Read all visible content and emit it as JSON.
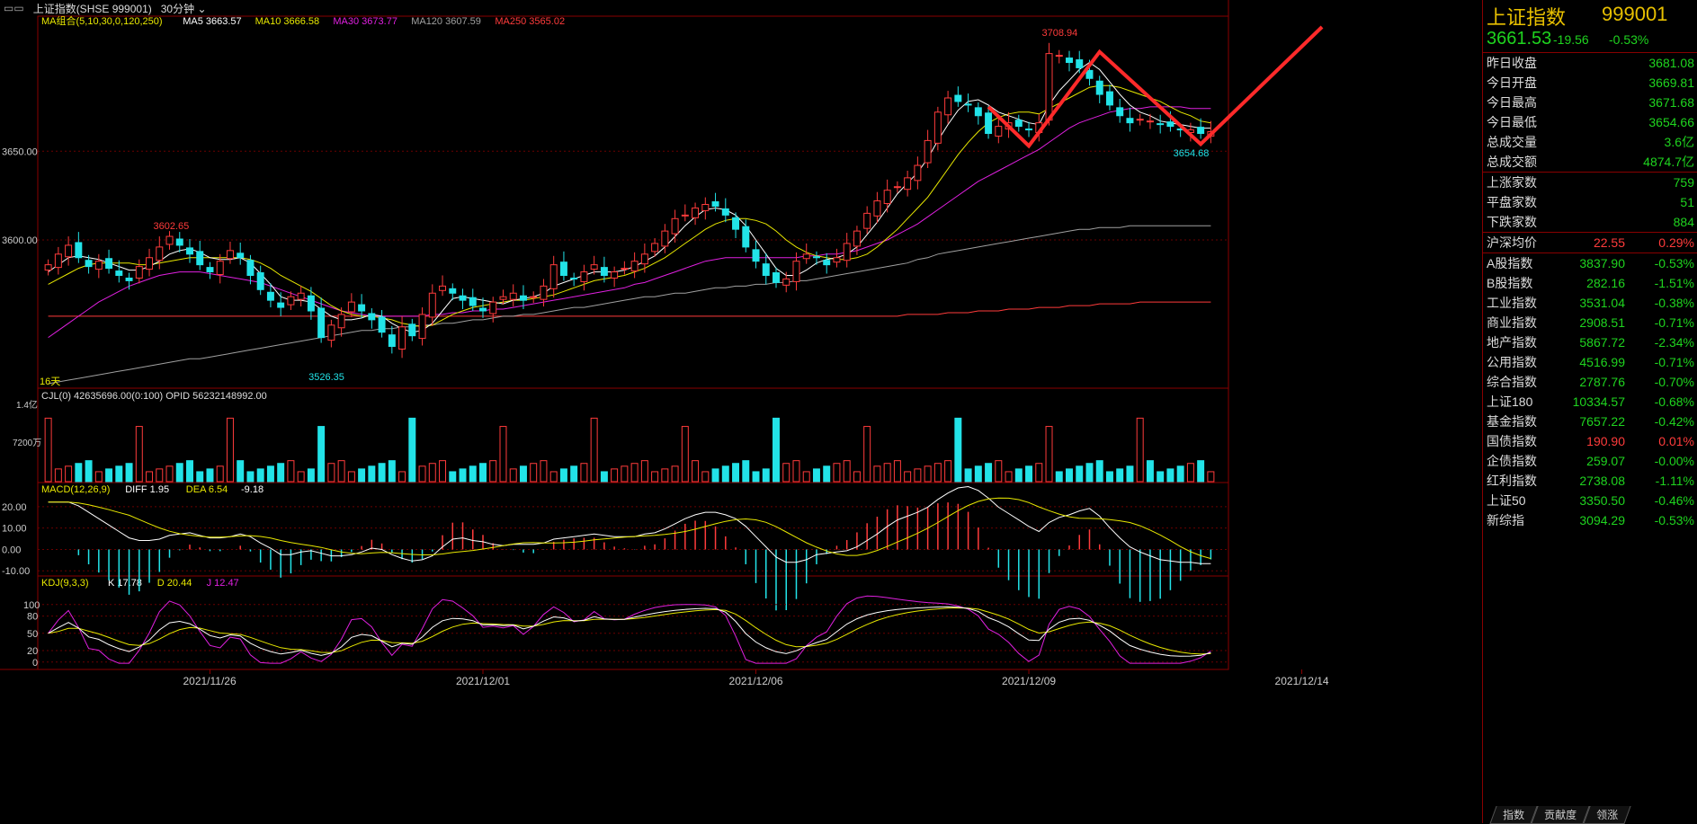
{
  "topbar": {
    "title": "上证指数(SHSE 999001)",
    "period": "30分钟"
  },
  "main_legend": [
    {
      "text": "MA组合(5,10,30,0,120,250)",
      "color": "#e8e800"
    },
    {
      "text": "MA5 3663.57",
      "color": "#ffffff"
    },
    {
      "text": "MA10 3666.58",
      "color": "#e8e800"
    },
    {
      "text": "MA30 3673.77",
      "color": "#e020e0"
    },
    {
      "text": "MA120 3607.59",
      "color": "#a0a0a0"
    },
    {
      "text": "MA250 3565.02",
      "color": "#ff3b3b"
    }
  ],
  "volume_legend": "CJL(0)  42635696.00(0:100)  OPID 56232148992.00",
  "macd_legend": [
    {
      "text": "MACD(12,26,9)",
      "color": "#e8e800"
    },
    {
      "text": "DIFF 1.95",
      "color": "#ffffff"
    },
    {
      "text": "DEA 6.54",
      "color": "#e8e800"
    },
    {
      "text": "-9.18",
      "color": "#ffffff"
    }
  ],
  "kdj_legend": [
    {
      "text": "KDJ(9,3,3)",
      "color": "#e8e800"
    },
    {
      "text": "K 17.78",
      "color": "#ffffff"
    },
    {
      "text": "D 20.44",
      "color": "#e8e800"
    },
    {
      "text": "J 12.47",
      "color": "#e020e0"
    }
  ],
  "price_annotations": {
    "high": "3708.94",
    "low": "3526.35",
    "local_high": "3602.65",
    "last_low": "3654.68",
    "days": "16天"
  },
  "info_panel": {
    "name": "上证指数",
    "code": "999001",
    "price": "3661.53",
    "change": "-19.56",
    "pct": "-0.53%",
    "stats": [
      {
        "k": "昨日收盘",
        "v": "3681.08",
        "c": "w"
      },
      {
        "k": "今日开盘",
        "v": "3669.81",
        "c": "g"
      },
      {
        "k": "今日最高",
        "v": "3671.68",
        "c": "g"
      },
      {
        "k": "今日最低",
        "v": "3654.66",
        "c": "g"
      },
      {
        "k": "总成交量",
        "v": "3.6亿",
        "c": "g"
      },
      {
        "k": "总成交额",
        "v": "4874.7亿",
        "c": "g"
      }
    ],
    "breadth": [
      {
        "k": "上涨家数",
        "v": "759",
        "c": "w"
      },
      {
        "k": "平盘家数",
        "v": "51",
        "c": "w"
      },
      {
        "k": "下跌家数",
        "v": "884",
        "c": "w"
      }
    ],
    "avg": {
      "k": "沪深均价",
      "v": "22.55",
      "p": "0.29%"
    },
    "indices": [
      {
        "k": "A股指数",
        "v": "3837.90",
        "p": "-0.53%",
        "c": "g"
      },
      {
        "k": "B股指数",
        "v": "282.16",
        "p": "-1.51%",
        "c": "g"
      },
      {
        "k": "工业指数",
        "v": "3531.04",
        "p": "-0.38%",
        "c": "g"
      },
      {
        "k": "商业指数",
        "v": "2908.51",
        "p": "-0.71%",
        "c": "g"
      },
      {
        "k": "地产指数",
        "v": "5867.72",
        "p": "-2.34%",
        "c": "g"
      },
      {
        "k": "公用指数",
        "v": "4516.99",
        "p": "-0.71%",
        "c": "g"
      },
      {
        "k": "综合指数",
        "v": "2787.76",
        "p": "-0.70%",
        "c": "g"
      },
      {
        "k": "上证180",
        "v": "10334.57",
        "p": "-0.68%",
        "c": "g"
      },
      {
        "k": "基金指数",
        "v": "7657.22",
        "p": "-0.42%",
        "c": "g"
      },
      {
        "k": "国债指数",
        "v": "190.90",
        "p": "0.01%",
        "c": "r"
      },
      {
        "k": "企债指数",
        "v": "259.07",
        "p": "-0.00%",
        "c": "g"
      },
      {
        "k": "红利指数",
        "v": "2738.08",
        "p": "-1.11%",
        "c": "g"
      },
      {
        "k": "上证50",
        "v": "3350.50",
        "p": "-0.46%",
        "c": "g"
      },
      {
        "k": "新综指",
        "v": "3094.29",
        "p": "-0.53%",
        "c": "g"
      }
    ],
    "tabs": [
      "指数",
      "贡献度",
      "领涨"
    ]
  },
  "chart_data": {
    "type": "candlestick",
    "x_labels": [
      "2021/11/26",
      "2021/12/01",
      "2021/12/06",
      "2021/12/09",
      "2021/12/14"
    ],
    "x_label_index": [
      16,
      43,
      70,
      97,
      124
    ],
    "price_ticks": [
      3600.0,
      3650.0
    ],
    "ylim": [
      3520,
      3720
    ],
    "closes": [
      3586,
      3592,
      3597,
      3590,
      3585,
      3588,
      3584,
      3580,
      3577,
      3585,
      3590,
      3596,
      3602,
      3597,
      3592,
      3586,
      3582,
      3588,
      3594,
      3590,
      3580,
      3572,
      3566,
      3562,
      3568,
      3570,
      3560,
      3545,
      3552,
      3558,
      3565,
      3560,
      3555,
      3548,
      3540,
      3551,
      3546,
      3558,
      3570,
      3574,
      3570,
      3566,
      3563,
      3560,
      3565,
      3568,
      3570,
      3566,
      3568,
      3574,
      3586,
      3580,
      3578,
      3582,
      3586,
      3580,
      3582,
      3584,
      3588,
      3592,
      3598,
      3605,
      3612,
      3614,
      3618,
      3620,
      3619,
      3614,
      3606,
      3596,
      3588,
      3580,
      3576,
      3578,
      3588,
      3592,
      3590,
      3586,
      3590,
      3598,
      3605,
      3615,
      3622,
      3628,
      3630,
      3635,
      3642,
      3656,
      3672,
      3680,
      3678,
      3676,
      3670,
      3660,
      3664,
      3666,
      3664,
      3662,
      3666,
      3705,
      3704,
      3700,
      3697,
      3691,
      3682,
      3676,
      3670,
      3666,
      3668,
      3667,
      3665,
      3664,
      3662,
      3662,
      3660,
      3661
    ],
    "ma5": [
      3582,
      3586,
      3590,
      3591,
      3590,
      3589,
      3587,
      3585,
      3583,
      3583,
      3585,
      3588,
      3592,
      3594,
      3595,
      3593,
      3590,
      3589,
      3589,
      3590,
      3587,
      3581,
      3575,
      3568,
      3566,
      3566,
      3565,
      3561,
      3557,
      3555,
      3555,
      3556,
      3558,
      3557,
      3553,
      3550,
      3548,
      3549,
      3553,
      3560,
      3567,
      3568,
      3567,
      3566,
      3565,
      3564,
      3566,
      3567,
      3568,
      3570,
      3574,
      3576,
      3578,
      3580,
      3582,
      3582,
      3582,
      3583,
      3585,
      3588,
      3591,
      3596,
      3602,
      3608,
      3613,
      3617,
      3618,
      3617,
      3614,
      3608,
      3600,
      3592,
      3584,
      3580,
      3580,
      3583,
      3587,
      3589,
      3590,
      3592,
      3596,
      3603,
      3610,
      3618,
      3626,
      3632,
      3638,
      3646,
      3656,
      3665,
      3673,
      3678,
      3679,
      3676,
      3672,
      3670,
      3668,
      3666,
      3665,
      3676,
      3684,
      3690,
      3696,
      3700,
      3696,
      3689,
      3682,
      3676,
      3672,
      3670,
      3667,
      3666,
      3665,
      3664,
      3663,
      3663
    ],
    "ma10": [
      3575,
      3578,
      3581,
      3584,
      3586,
      3587,
      3587,
      3587,
      3587,
      3586,
      3586,
      3587,
      3588,
      3589,
      3590,
      3590,
      3590,
      3590,
      3590,
      3590,
      3589,
      3587,
      3584,
      3580,
      3577,
      3574,
      3571,
      3567,
      3563,
      3560,
      3558,
      3557,
      3557,
      3556,
      3555,
      3553,
      3552,
      3551,
      3552,
      3555,
      3558,
      3560,
      3562,
      3563,
      3564,
      3565,
      3566,
      3566,
      3567,
      3568,
      3569,
      3571,
      3573,
      3575,
      3577,
      3578,
      3579,
      3580,
      3582,
      3584,
      3587,
      3590,
      3594,
      3598,
      3602,
      3606,
      3609,
      3611,
      3612,
      3612,
      3611,
      3609,
      3605,
      3600,
      3596,
      3593,
      3591,
      3590,
      3589,
      3589,
      3590,
      3592,
      3596,
      3601,
      3606,
      3612,
      3618,
      3624,
      3632,
      3640,
      3648,
      3655,
      3661,
      3666,
      3669,
      3671,
      3672,
      3672,
      3671,
      3674,
      3677,
      3680,
      3683,
      3686,
      3687,
      3687,
      3686,
      3684,
      3682,
      3680,
      3678,
      3675,
      3672,
      3670,
      3667,
      3666
    ],
    "ma30": [
      3545,
      3549,
      3553,
      3557,
      3561,
      3565,
      3568,
      3571,
      3574,
      3576,
      3578,
      3580,
      3581,
      3582,
      3582,
      3582,
      3581,
      3580,
      3579,
      3578,
      3577,
      3576,
      3574,
      3572,
      3570,
      3568,
      3566,
      3564,
      3562,
      3560,
      3559,
      3558,
      3557,
      3557,
      3557,
      3557,
      3557,
      3557,
      3558,
      3558,
      3559,
      3559,
      3560,
      3560,
      3561,
      3561,
      3562,
      3563,
      3564,
      3565,
      3566,
      3567,
      3568,
      3569,
      3570,
      3571,
      3572,
      3573,
      3575,
      3576,
      3578,
      3580,
      3582,
      3584,
      3586,
      3588,
      3589,
      3590,
      3590,
      3590,
      3590,
      3590,
      3590,
      3590,
      3590,
      3591,
      3591,
      3592,
      3592,
      3593,
      3594,
      3596,
      3598,
      3600,
      3603,
      3606,
      3609,
      3613,
      3617,
      3621,
      3625,
      3629,
      3633,
      3636,
      3639,
      3642,
      3645,
      3648,
      3651,
      3655,
      3659,
      3663,
      3666,
      3668,
      3670,
      3672,
      3673,
      3674,
      3674,
      3675,
      3675,
      3675,
      3675,
      3674,
      3674,
      3674
    ],
    "ma120": [
      3519,
      3520,
      3521,
      3522,
      3523,
      3524,
      3525,
      3526,
      3527,
      3528,
      3529,
      3530,
      3531,
      3532,
      3533,
      3533,
      3534,
      3535,
      3536,
      3537,
      3538,
      3539,
      3540,
      3541,
      3542,
      3543,
      3544,
      3545,
      3546,
      3547,
      3548,
      3549,
      3549,
      3550,
      3550,
      3551,
      3551,
      3552,
      3552,
      3553,
      3553,
      3554,
      3555,
      3555,
      3556,
      3557,
      3557,
      3558,
      3558,
      3559,
      3560,
      3561,
      3562,
      3562,
      3563,
      3564,
      3565,
      3566,
      3567,
      3568,
      3568,
      3569,
      3570,
      3570,
      3571,
      3572,
      3573,
      3573,
      3574,
      3574,
      3575,
      3575,
      3576,
      3576,
      3577,
      3577,
      3578,
      3579,
      3580,
      3581,
      3582,
      3583,
      3584,
      3585,
      3586,
      3587,
      3589,
      3590,
      3592,
      3593,
      3594,
      3595,
      3596,
      3597,
      3598,
      3599,
      3600,
      3601,
      3602,
      3603,
      3604,
      3605,
      3606,
      3606,
      3607,
      3607,
      3607,
      3608,
      3608,
      3608,
      3608,
      3608,
      3608,
      3608,
      3608,
      3608
    ],
    "ma250": [
      3557,
      3557,
      3557,
      3557,
      3557,
      3557,
      3557,
      3557,
      3557,
      3557,
      3557,
      3557,
      3557,
      3557,
      3557,
      3557,
      3557,
      3557,
      3557,
      3557,
      3557,
      3557,
      3557,
      3557,
      3557,
      3557,
      3557,
      3557,
      3557,
      3557,
      3557,
      3557,
      3557,
      3557,
      3557,
      3557,
      3557,
      3557,
      3557,
      3557,
      3557,
      3557,
      3557,
      3557,
      3557,
      3557,
      3557,
      3557,
      3557,
      3557,
      3557,
      3557,
      3557,
      3557,
      3557,
      3557,
      3557,
      3557,
      3557,
      3557,
      3557,
      3557,
      3557,
      3557,
      3557,
      3557,
      3557,
      3557,
      3557,
      3557,
      3557,
      3557,
      3557,
      3557,
      3557,
      3557,
      3557,
      3557,
      3557,
      3557,
      3557,
      3557,
      3557,
      3557,
      3557,
      3558,
      3558,
      3558,
      3558,
      3559,
      3559,
      3559,
      3560,
      3560,
      3560,
      3561,
      3561,
      3561,
      3562,
      3562,
      3562,
      3563,
      3563,
      3563,
      3564,
      3564,
      3564,
      3564,
      3565,
      3565,
      3565,
      3565,
      3565,
      3565,
      3565,
      3565
    ],
    "volume_ticks": [
      "1.4亿",
      "7200万"
    ],
    "volume_ylim": [
      0,
      140000000
    ],
    "macd_ticks": [
      20.0,
      10.0,
      0.0,
      -10.0
    ],
    "macd_ylim": [
      -12,
      25
    ],
    "kdj_ticks": [
      100,
      80,
      50,
      20,
      0
    ],
    "kdj_ylim": [
      -5,
      120
    ]
  }
}
